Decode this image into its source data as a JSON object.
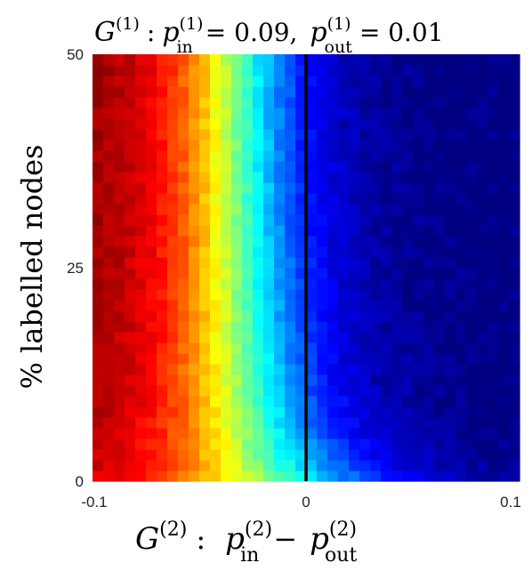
{
  "chart_data": {
    "type": "heatmap",
    "title": {
      "G": "G",
      "G_sup": "(1)",
      "colon": ":",
      "p": "p",
      "p_in_sup": "(1)",
      "p_in_sub": "in",
      "p_in_val": "= 0.09,",
      "p_out_sup": "(1)",
      "p_out_sub": "out",
      "p_out_val": "= 0.01"
    },
    "xlabel": {
      "G": "G",
      "G_sup": "(2)",
      "colon": ":",
      "p": "p",
      "in_sup": "(2)",
      "in_sub": "in",
      "minus": "−",
      "out_sup": "(2)",
      "out_sub": "out"
    },
    "ylabel": "% labelled nodes",
    "xlim": [
      -0.1,
      0.1
    ],
    "ylim": [
      0,
      50
    ],
    "x_ticks": [
      -0.1,
      0,
      0.1
    ],
    "x_tick_labels": [
      "-0.1",
      "0",
      "0.1"
    ],
    "y_ticks": [
      0,
      25,
      50
    ],
    "y_tick_labels": [
      "0",
      "25",
      "50"
    ],
    "grid": {
      "cols": 40,
      "rows": 40
    },
    "colormap": "jet",
    "color_range": [
      0,
      1
    ],
    "vertical_line": {
      "x": 0,
      "color": "#000000"
    },
    "grid_lines": false,
    "colorbar": false
  }
}
